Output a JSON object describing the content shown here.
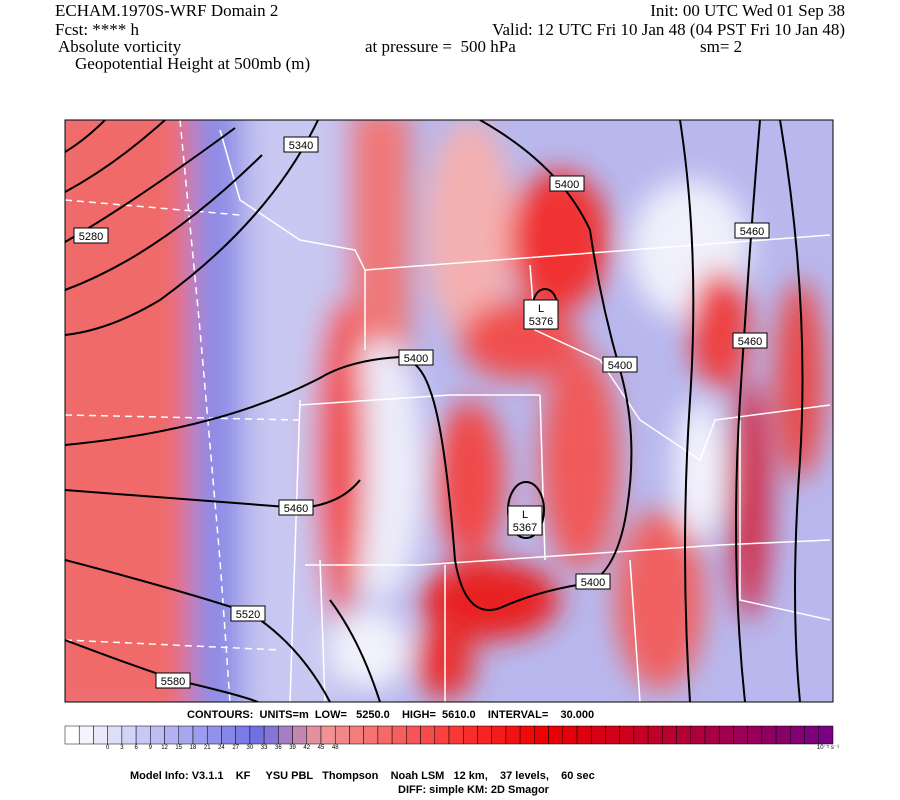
{
  "header": {
    "model": "ECHAM.1970S-WRF Domain 2",
    "fcst": "Fcst: **** h",
    "field": "Absolute vorticity",
    "contour_field": "Geopotential Height at 500mb (m)",
    "init": "Init: 00 UTC Wed 01 Sep 38",
    "valid": "Valid: 12 UTC Fri 10 Jan 48 (04 PST Fri 10 Jan 48)",
    "pressure": "at pressure =  500 hPa",
    "smooth": "sm= 2"
  },
  "map": {
    "contour_labels": [
      "5340",
      "5280",
      "5400",
      "5460",
      "5460",
      "5400",
      "5400",
      "5460",
      "5520",
      "5580",
      "5400"
    ],
    "lows": [
      {
        "label": "L",
        "value": "5376"
      },
      {
        "label": "L",
        "value": "5367"
      }
    ]
  },
  "contour_info": "CONTOURS:  UNITS=m  LOW=   5250.0    HIGH=  5610.0    INTERVAL=    30.000",
  "colorbar": {
    "labels": [
      "0",
      "3",
      "6",
      "9",
      "12",
      "15",
      "18",
      "21",
      "24",
      "27",
      "30",
      "33",
      "36",
      "39",
      "42",
      "45",
      "48"
    ],
    "unit": "10⁻⁵ s⁻¹"
  },
  "footer": {
    "model_info": "Model Info: V3.1.1    KF     YSU PBL   Thompson    Noah LSM   12 km,    37 levels,    60 sec",
    "diff": "DIFF: simple KM: 2D Smagor"
  }
}
